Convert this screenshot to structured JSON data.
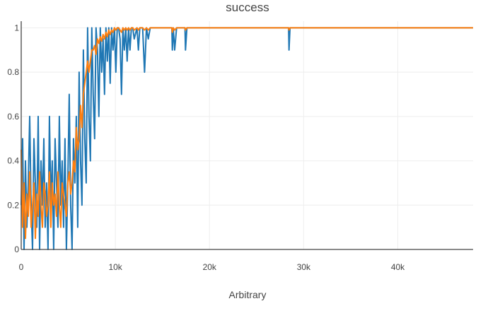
{
  "chart_data": {
    "type": "line",
    "title": "success",
    "xlabel": "Arbitrary",
    "ylabel": "",
    "xlim": [
      0,
      48000
    ],
    "ylim": [
      0,
      1.03
    ],
    "grid": true,
    "legend": "none",
    "x_ticks": [
      {
        "value": 0,
        "label": "0"
      },
      {
        "value": 10000,
        "label": "10k"
      },
      {
        "value": 20000,
        "label": "20k"
      },
      {
        "value": 30000,
        "label": "30k"
      },
      {
        "value": 40000,
        "label": "40k"
      }
    ],
    "y_ticks": [
      {
        "value": 0,
        "label": "0"
      },
      {
        "value": 0.2,
        "label": "0.2"
      },
      {
        "value": 0.4,
        "label": "0.4"
      },
      {
        "value": 0.6,
        "label": "0.6"
      },
      {
        "value": 0.8,
        "label": "0.8"
      },
      {
        "value": 1,
        "label": "1"
      }
    ],
    "series": [
      {
        "color": "#1f77b4",
        "x": [
          0,
          150,
          300,
          450,
          600,
          750,
          900,
          1050,
          1200,
          1350,
          1500,
          1650,
          1800,
          1950,
          2100,
          2250,
          2400,
          2550,
          2700,
          2850,
          3000,
          3150,
          3300,
          3450,
          3600,
          3750,
          3900,
          4050,
          4200,
          4350,
          4500,
          4650,
          4800,
          4950,
          5100,
          5250,
          5400,
          5550,
          5700,
          5850,
          6000,
          6150,
          6300,
          6450,
          6600,
          6750,
          6900,
          7050,
          7200,
          7350,
          7500,
          7650,
          7800,
          7950,
          8100,
          8250,
          8400,
          8550,
          8700,
          8850,
          9000,
          9150,
          9300,
          9450,
          9600,
          9750,
          9900,
          10050,
          10200,
          10350,
          10500,
          10650,
          10800,
          10950,
          11100,
          11250,
          11400,
          11550,
          11700,
          11850,
          12000,
          12300,
          12450,
          12600,
          12900,
          13100,
          13300,
          13500,
          13700,
          13900,
          14500,
          15500,
          16000,
          16050,
          16150,
          16300,
          16500,
          17000,
          17400,
          17450,
          17600,
          18500,
          22000,
          26000,
          28400,
          28450,
          28550,
          29000,
          35000,
          40000,
          44000,
          48000
        ],
        "y": [
          0.2,
          0.5,
          0,
          0.4,
          0.1,
          0.3,
          0.6,
          0.2,
          0,
          0.5,
          0.3,
          0.1,
          0.6,
          0,
          0.4,
          0.2,
          0.5,
          0.1,
          0.3,
          0,
          0.6,
          0.2,
          0.4,
          0,
          0.5,
          0.3,
          0.1,
          0.6,
          0.2,
          0.4,
          0.1,
          0.5,
          0,
          0.3,
          0.7,
          0.2,
          0,
          0.5,
          0.3,
          0.6,
          0.1,
          0.8,
          0.4,
          0.2,
          0.9,
          0.5,
          0.3,
          1,
          0.6,
          0.4,
          1,
          0.7,
          0.5,
          1,
          0.9,
          0.6,
          1,
          0.8,
          0.95,
          0.7,
          1,
          0.85,
          1,
          0.75,
          1,
          0.9,
          1,
          0.8,
          1,
          1,
          0.95,
          0.7,
          1,
          0.9,
          1,
          0.85,
          1,
          0.9,
          1,
          1,
          0.95,
          1,
          0.9,
          1,
          1,
          0.8,
          1,
          0.95,
          1,
          1,
          1,
          1,
          1,
          0.9,
          1,
          0.9,
          1,
          1,
          1,
          0.9,
          1,
          1,
          1,
          1,
          1,
          0.9,
          1,
          1,
          1,
          1,
          1,
          1
        ]
      },
      {
        "color": "#ff7f0e",
        "x": [
          0,
          150,
          300,
          450,
          600,
          750,
          900,
          1050,
          1200,
          1350,
          1500,
          1650,
          1800,
          1950,
          2100,
          2250,
          2400,
          2550,
          2700,
          2850,
          3000,
          3150,
          3300,
          3450,
          3600,
          3750,
          3900,
          4050,
          4200,
          4350,
          4500,
          4650,
          4800,
          4950,
          5100,
          5250,
          5400,
          5550,
          5700,
          5850,
          6000,
          6150,
          6300,
          6450,
          6600,
          6750,
          6900,
          7050,
          7200,
          7350,
          7500,
          7650,
          7800,
          7950,
          8100,
          8250,
          8400,
          8550,
          8700,
          8850,
          9000,
          9150,
          9300,
          9450,
          9600,
          9750,
          9900,
          10050,
          10200,
          10350,
          10500,
          10650,
          10800,
          10950,
          11100,
          11250,
          11400,
          11550,
          11700,
          11850,
          12000,
          12300,
          12450,
          12600,
          12900,
          13100,
          13300,
          13500,
          13700,
          13900,
          14500,
          15500,
          16000,
          16050,
          16150,
          16300,
          16500,
          17000,
          17400,
          17450,
          17600,
          18500,
          22000,
          26000,
          28400,
          28450,
          28550,
          29000,
          35000,
          40000,
          44000,
          48000
        ],
        "y": [
          0.45,
          0.1,
          0.3,
          0.05,
          0.25,
          0.15,
          0.35,
          0.1,
          0.2,
          0.3,
          0.05,
          0.25,
          0.15,
          0.35,
          0.2,
          0.1,
          0.3,
          0.25,
          0.15,
          0.2,
          0.35,
          0.1,
          0.3,
          0.2,
          0.25,
          0.15,
          0.35,
          0.2,
          0.1,
          0.3,
          0.25,
          0.2,
          0.15,
          0.3,
          0.35,
          0.25,
          0.3,
          0.4,
          0.35,
          0.55,
          0.45,
          0.5,
          0.65,
          0.55,
          0.7,
          0.75,
          0.8,
          0.85,
          0.8,
          0.85,
          0.9,
          0.9,
          0.92,
          0.88,
          0.95,
          0.93,
          0.96,
          0.94,
          0.97,
          0.95,
          0.98,
          0.96,
          0.99,
          0.97,
          0.99,
          0.98,
          1,
          0.99,
          1,
          1,
          0.99,
          0.98,
          1,
          0.99,
          1,
          0.99,
          1,
          0.99,
          1,
          1,
          0.99,
          1,
          0.99,
          1,
          1,
          0.99,
          1,
          0.99,
          1,
          1,
          1,
          1,
          1,
          0.98,
          1,
          0.99,
          1,
          1,
          1,
          0.99,
          1,
          1,
          1,
          1,
          1,
          0.99,
          1,
          1,
          1,
          1,
          1,
          1
        ]
      }
    ]
  }
}
